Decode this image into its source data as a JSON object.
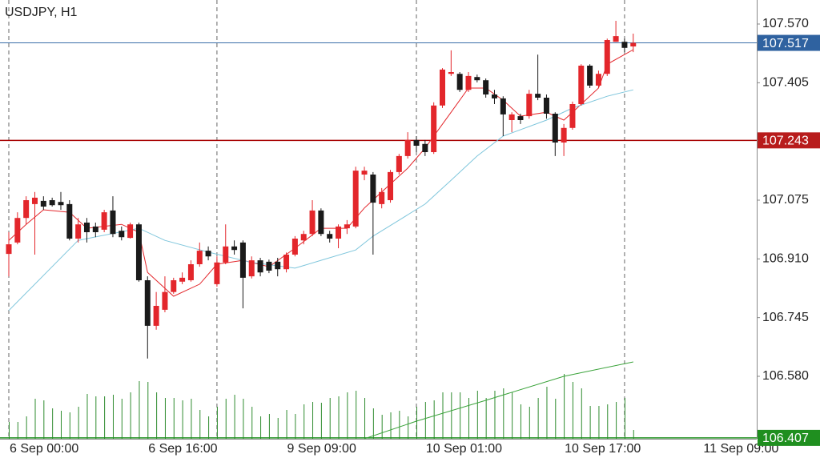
{
  "chart_data": {
    "type": "candlestick",
    "title": "USDJPY, H1",
    "categories": [
      "6 Sep 00:00",
      null,
      null,
      null,
      null,
      null,
      null,
      null,
      null,
      null,
      null,
      null,
      null,
      null,
      null,
      null,
      "6 Sep 16:00",
      null,
      null,
      null,
      null,
      null,
      null,
      null,
      null,
      null,
      null,
      null,
      null,
      null,
      null,
      null,
      "9 Sep 09:00",
      null,
      null,
      null,
      null,
      null,
      null,
      null,
      null,
      null,
      null,
      null,
      null,
      null,
      null,
      null,
      "10 Sep 01:00",
      null,
      null,
      null,
      null,
      null,
      null,
      null,
      null,
      null,
      null,
      null,
      null,
      null,
      null,
      null,
      "10 Sep 17:00",
      null,
      null,
      null,
      null,
      null,
      null,
      null,
      null,
      null,
      null,
      null,
      null,
      null,
      null,
      null,
      "11 Sep 09:00"
    ],
    "open": [
      106.924,
      106.956,
      107.025,
      107.064,
      107.073,
      107.075,
      107.07,
      107.064,
      106.967,
      107.012,
      107.001,
      106.992,
      107.046,
      106.989,
      106.969,
      107.007,
      106.85,
      106.722,
      106.767,
      106.817,
      106.846,
      106.85,
      106.895,
      106.933,
      106.839,
      106.9,
      106.945,
      106.956,
      106.861,
      106.906,
      106.902,
      106.902,
      106.881,
      106.922,
      106.962,
      106.98,
      107.046,
      106.98,
      106.967,
      106.996,
      107.001,
      107.147,
      107.147,
      107.064,
      107.075,
      107.154,
      107.199,
      107.244,
      107.233,
      107.21,
      107.341,
      107.43,
      107.43,
      107.385,
      107.421,
      107.412,
      107.372,
      107.361,
      107.3,
      107.311,
      107.311,
      107.374,
      107.363,
      107.318,
      107.237,
      107.278,
      107.345,
      107.453,
      107.397,
      107.43,
      107.52,
      107.52,
      107.507,
      null,
      null,
      null,
      null,
      null,
      null,
      null,
      null
    ],
    "high": [
      106.985,
      107.041,
      107.086,
      107.098,
      107.086,
      107.082,
      107.098,
      107.075,
      107.025,
      107.025,
      107.012,
      107.048,
      107.086,
      107.001,
      107.012,
      107.012,
      106.861,
      106.817,
      106.861,
      106.857,
      106.872,
      106.906,
      106.956,
      106.945,
      106.917,
      107.007,
      106.962,
      106.962,
      106.917,
      106.913,
      106.908,
      106.913,
      106.928,
      106.974,
      106.989,
      107.075,
      107.052,
      106.989,
      107.007,
      107.019,
      107.169,
      107.169,
      107.154,
      107.109,
      107.16,
      107.205,
      107.266,
      107.255,
      107.244,
      107.35,
      107.446,
      107.496,
      107.435,
      107.435,
      107.428,
      107.417,
      107.385,
      107.367,
      107.322,
      107.318,
      107.385,
      107.484,
      107.372,
      107.322,
      107.289,
      107.352,
      107.457,
      107.457,
      107.439,
      107.529,
      107.579,
      107.529,
      107.543,
      null,
      null,
      null,
      null,
      null,
      null,
      null,
      null
    ],
    "low": [
      106.861,
      106.951,
      107.007,
      106.922,
      107.048,
      107.057,
      107.048,
      106.962,
      106.956,
      106.956,
      106.971,
      106.985,
      106.971,
      106.962,
      106.967,
      106.846,
      106.63,
      106.711,
      106.76,
      106.812,
      106.839,
      106.846,
      106.888,
      106.906,
      106.832,
      106.895,
      106.922,
      106.771,
      106.855,
      106.861,
      106.87,
      106.861,
      106.872,
      106.917,
      106.951,
      106.974,
      106.974,
      106.956,
      106.94,
      106.98,
      106.996,
      107.131,
      106.922,
      107.052,
      107.068,
      107.147,
      107.192,
      107.21,
      107.199,
      107.205,
      107.334,
      107.424,
      107.379,
      107.379,
      107.406,
      107.363,
      107.345,
      107.255,
      107.266,
      107.289,
      107.304,
      107.356,
      107.304,
      107.199,
      107.199,
      107.273,
      107.341,
      107.39,
      107.39,
      107.424,
      107.52,
      107.491,
      107.491,
      null,
      null,
      null,
      null,
      null,
      null,
      null,
      null
    ],
    "close": [
      106.951,
      107.025,
      107.075,
      107.082,
      107.057,
      107.061,
      107.061,
      106.967,
      107.007,
      106.985,
      106.985,
      107.041,
      106.98,
      106.971,
      107.007,
      106.85,
      106.722,
      106.778,
      106.817,
      106.85,
      106.857,
      106.895,
      106.933,
      106.917,
      106.9,
      106.945,
      106.935,
      106.857,
      106.906,
      106.872,
      106.877,
      106.881,
      106.922,
      106.967,
      106.98,
      107.046,
      106.98,
      106.967,
      107.001,
      107.007,
      107.158,
      107.158,
      107.068,
      107.098,
      107.154,
      107.199,
      107.244,
      107.228,
      107.21,
      107.341,
      107.442,
      107.435,
      107.385,
      107.424,
      107.412,
      107.372,
      107.361,
      107.316,
      107.316,
      107.3,
      107.374,
      107.363,
      107.318,
      107.237,
      107.278,
      107.345,
      107.453,
      107.397,
      107.43,
      107.525,
      107.536,
      107.503,
      107.517,
      null,
      null,
      null,
      null,
      null,
      null,
      null,
      null
    ],
    "volume": [
      21,
      21,
      28,
      50,
      48,
      38,
      35,
      33,
      40,
      56,
      53,
      53,
      55,
      50,
      58,
      72,
      71,
      58,
      51,
      51,
      48,
      50,
      36,
      28,
      40,
      50,
      55,
      50,
      40,
      28,
      31,
      26,
      36,
      31,
      43,
      46,
      45,
      51,
      53,
      58,
      60,
      51,
      38,
      30,
      33,
      35,
      28,
      40,
      46,
      48,
      58,
      58,
      58,
      51,
      60,
      51,
      60,
      63,
      58,
      43,
      40,
      51,
      65,
      50,
      81,
      71,
      63,
      41,
      41,
      43,
      46,
      51,
      11,
      null,
      null,
      null,
      null,
      null,
      null,
      null,
      null
    ],
    "up_color": "#e3262b",
    "down_color": "#1a1a1a",
    "volume_color": "#2e8b2e",
    "ylim": [
      106.4045,
      107.6375
    ],
    "yticks": [
      {
        "value": 107.57,
        "label": "107.570"
      },
      107.405,
      107.075,
      {
        "value": 106.91,
        "label": "106.910"
      },
      106.745,
      {
        "value": 106.58,
        "label": "106.580"
      }
    ],
    "separators": [
      0,
      24,
      47,
      71
    ],
    "price_lines": [
      {
        "value": 107.517,
        "color": "#3a6ea8",
        "label_color": "#2f62a0"
      },
      {
        "value": 107.243,
        "color": "#a80000",
        "label_color": "#b81c1c"
      },
      {
        "value": 106.407,
        "color": "#1f8f1f",
        "label_color": "#1f8f1f"
      }
    ],
    "indicators": [
      {
        "color": "#e3262b",
        "x": [
          0,
          2,
          4,
          7,
          9,
          13,
          15,
          16,
          19,
          22,
          24,
          27,
          30,
          33,
          36,
          39,
          41,
          43,
          46,
          48,
          51,
          53,
          55,
          57,
          59,
          62,
          64,
          65,
          68,
          69,
          72
        ],
        "values": [
          106.962,
          107.007,
          107.048,
          107.041,
          106.996,
          107.007,
          106.985,
          106.872,
          106.805,
          106.839,
          106.895,
          106.906,
          106.888,
          106.94,
          106.996,
          106.996,
          107.053,
          107.098,
          107.165,
          107.221,
          107.322,
          107.39,
          107.39,
          107.356,
          107.311,
          107.322,
          107.3,
          107.322,
          107.39,
          107.457,
          107.498
        ]
      },
      {
        "color": "#7fc6dc",
        "x": [
          0,
          8,
          15,
          18,
          23,
          28,
          33,
          36,
          40,
          42,
          45,
          48,
          51,
          54,
          57,
          62,
          65,
          69,
          72
        ],
        "values": [
          106.765,
          106.962,
          106.996,
          106.962,
          106.929,
          106.9,
          106.884,
          106.906,
          106.935,
          106.974,
          107.019,
          107.064,
          107.131,
          107.199,
          107.255,
          107.3,
          107.334,
          107.367,
          107.385
        ]
      },
      {
        "color": "#3aa33a",
        "axis": "volume",
        "x": [
          41,
          47,
          55,
          64,
          72
        ],
        "values": [
          0,
          22,
          48,
          78,
          96
        ]
      }
    ]
  }
}
